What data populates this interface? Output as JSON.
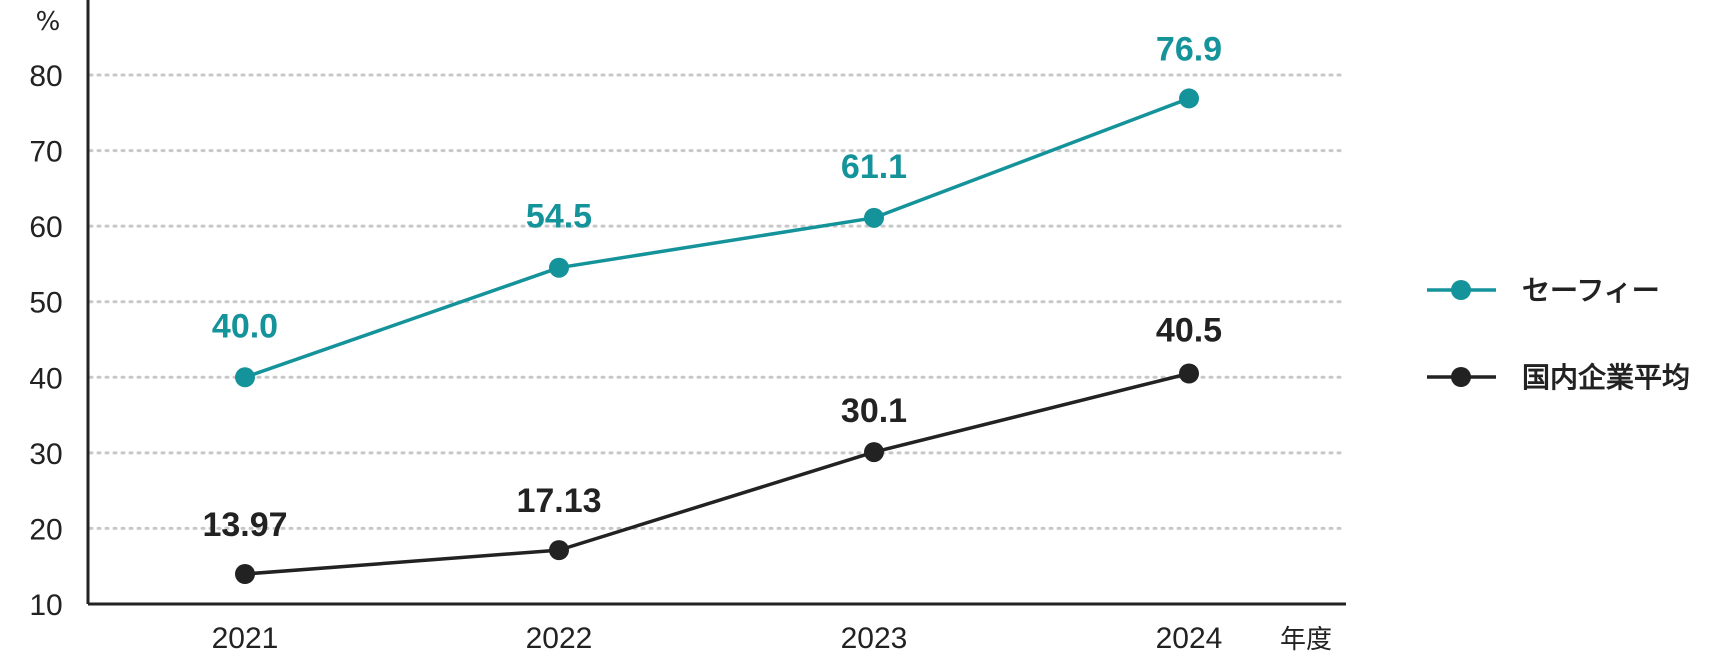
{
  "chart_data": {
    "type": "line",
    "x": [
      "2021",
      "2022",
      "2023",
      "2024"
    ],
    "xlabel": "年度",
    "ylabel": "%",
    "ylim": [
      10,
      80
    ],
    "yticks": [
      10,
      20,
      30,
      40,
      50,
      60,
      70,
      80
    ],
    "grid": true,
    "grid_style": "dotted",
    "legend_position": "right",
    "series": [
      {
        "name": "セーフィー",
        "values": [
          40.0,
          54.5,
          61.1,
          76.9
        ],
        "labels": [
          "40.0",
          "54.5",
          "61.1",
          "76.9"
        ],
        "color": "#15939a"
      },
      {
        "name": "国内企業平均",
        "values": [
          13.97,
          17.13,
          30.1,
          40.5
        ],
        "labels": [
          "13.97",
          "17.13",
          "30.1",
          "40.5"
        ],
        "color": "#222222"
      }
    ]
  }
}
